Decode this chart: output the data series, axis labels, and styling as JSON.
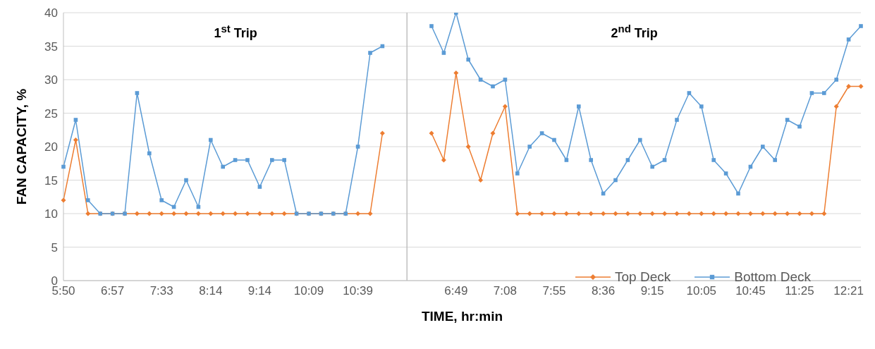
{
  "chart_data": {
    "type": "line",
    "xlabel": "TIME, hr:min",
    "ylabel": "FAN CAPACITY, %",
    "annotations": [
      "1$^{st}$ Trip",
      "2$^{nd}$ Trip"
    ],
    "categories": [
      "5:50",
      null,
      null,
      null,
      "6:57",
      null,
      null,
      null,
      "7:33",
      null,
      null,
      null,
      "8:14",
      null,
      null,
      null,
      "9:14",
      null,
      null,
      null,
      "10:09",
      null,
      null,
      null,
      "10:39",
      null,
      null,
      null,
      null,
      null,
      null,
      null,
      "6:49",
      null,
      null,
      null,
      "7:08",
      null,
      null,
      null,
      "7:55",
      null,
      null,
      null,
      "8:36",
      null,
      null,
      null,
      "9:15",
      null,
      null,
      null,
      "10:05",
      null,
      null,
      null,
      "10:45",
      null,
      null,
      null,
      "11:25",
      null,
      null,
      null,
      "12:21",
      null
    ],
    "series": [
      {
        "name": "Top Deck",
        "color": "#ed7d31",
        "marker": "diamond",
        "values": [
          12,
          21,
          10,
          10,
          10,
          10,
          10,
          10,
          10,
          10,
          10,
          10,
          10,
          10,
          10,
          10,
          10,
          10,
          10,
          10,
          10,
          10,
          10,
          10,
          10,
          10,
          22,
          null,
          null,
          null,
          22,
          18,
          31,
          20,
          15,
          22,
          26,
          10,
          10,
          10,
          10,
          10,
          10,
          10,
          10,
          10,
          10,
          10,
          10,
          10,
          10,
          10,
          10,
          10,
          10,
          10,
          10,
          10,
          10,
          10,
          10,
          10,
          10,
          26,
          29,
          29
        ]
      },
      {
        "name": "Bottom Deck",
        "color": "#5b9bd5",
        "marker": "square",
        "values": [
          17,
          24,
          12,
          10,
          10,
          10,
          28,
          19,
          12,
          11,
          15,
          11,
          21,
          17,
          18,
          18,
          14,
          18,
          18,
          10,
          10,
          10,
          10,
          10,
          20,
          34,
          35,
          null,
          null,
          null,
          38,
          34,
          40,
          33,
          30,
          29,
          30,
          16,
          20,
          22,
          21,
          18,
          26,
          18,
          13,
          15,
          18,
          21,
          17,
          18,
          24,
          28,
          26,
          18,
          16,
          13,
          17,
          20,
          18,
          24,
          23,
          28,
          28,
          30,
          36,
          38
        ]
      }
    ],
    "ylim": [
      0,
      40
    ],
    "yticks": [
      0,
      5,
      10,
      15,
      20,
      25,
      30,
      35,
      40
    ],
    "grid": "y",
    "legend": "bottom right"
  }
}
